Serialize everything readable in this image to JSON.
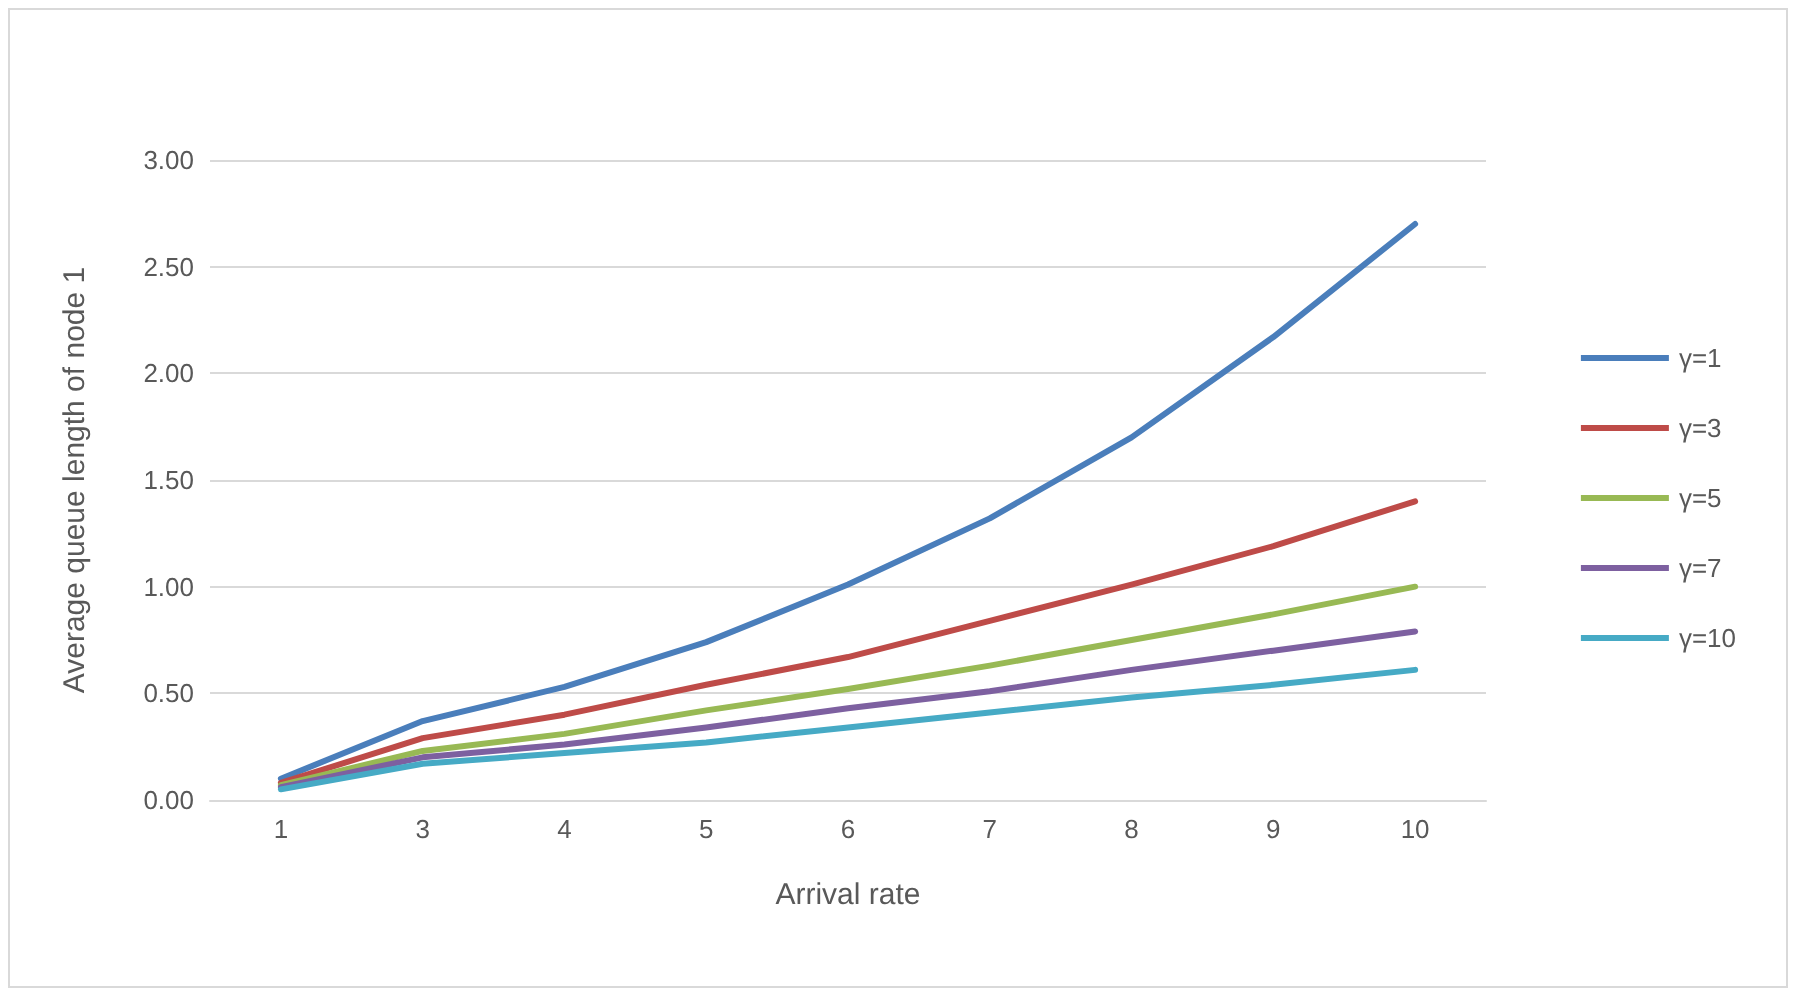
{
  "chart_data": {
    "type": "line",
    "xlabel": "Arrival rate",
    "ylabel": "Average queue length of node 1",
    "categories": [
      "1",
      "3",
      "4",
      "5",
      "6",
      "7",
      "8",
      "9",
      "10"
    ],
    "series": [
      {
        "name": "γ=1",
        "color": "#4a7ebb",
        "values": [
          0.1,
          0.37,
          0.53,
          0.74,
          1.01,
          1.32,
          1.7,
          2.17,
          2.7
        ]
      },
      {
        "name": "γ=3",
        "color": "#be4b48",
        "values": [
          0.08,
          0.29,
          0.4,
          0.54,
          0.67,
          0.84,
          1.01,
          1.19,
          1.4
        ]
      },
      {
        "name": "γ=5",
        "color": "#98b954",
        "values": [
          0.07,
          0.23,
          0.31,
          0.42,
          0.52,
          0.63,
          0.75,
          0.87,
          1.0
        ]
      },
      {
        "name": "γ=7",
        "color": "#7d60a0",
        "values": [
          0.06,
          0.2,
          0.26,
          0.34,
          0.43,
          0.51,
          0.61,
          0.7,
          0.79
        ]
      },
      {
        "name": "γ=10",
        "color": "#46aac5",
        "values": [
          0.05,
          0.17,
          0.22,
          0.27,
          0.34,
          0.41,
          0.48,
          0.54,
          0.61
        ]
      }
    ],
    "ylim": [
      0,
      3
    ],
    "yticks": [
      {
        "value": 0,
        "label": "0.00"
      },
      {
        "value": 0.5,
        "label": "0.50"
      },
      {
        "value": 1,
        "label": "1.00"
      },
      {
        "value": 1.5,
        "label": "1.50"
      },
      {
        "value": 2,
        "label": "2.00"
      },
      {
        "value": 2.5,
        "label": "2.50"
      },
      {
        "value": 3,
        "label": "3.00"
      }
    ],
    "grid": "y",
    "legend": "right",
    "marker": "none",
    "line_style": "solid"
  }
}
